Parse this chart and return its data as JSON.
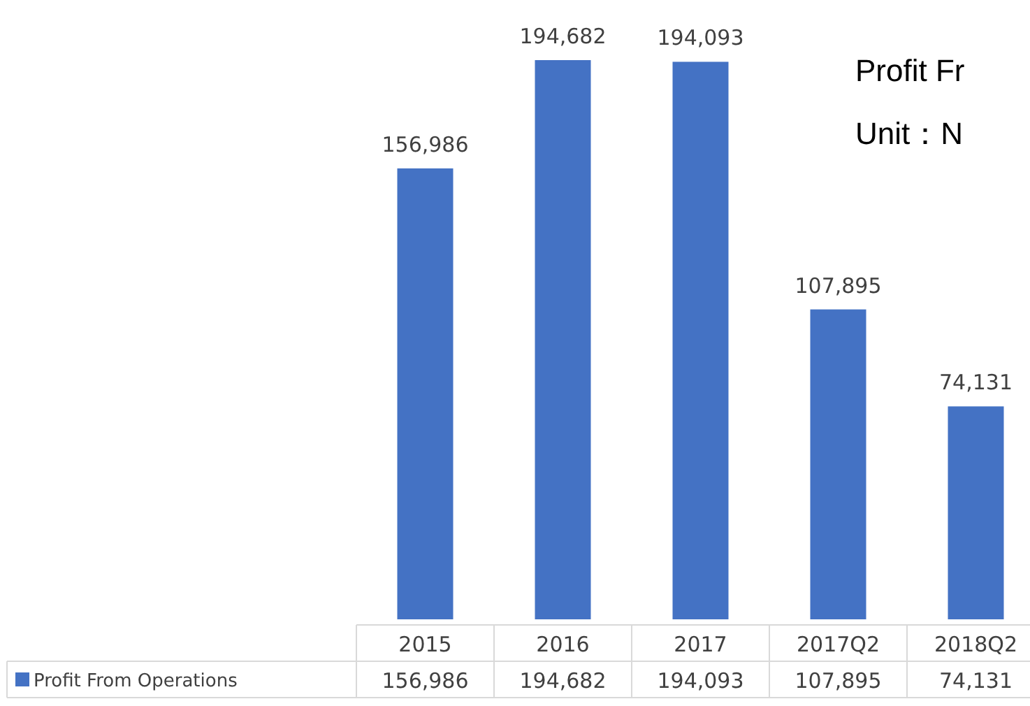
{
  "chart_data": {
    "type": "bar",
    "title": "Profit Fr",
    "subtitle": "Unit：N",
    "categories": [
      "2015",
      "2016",
      "2017",
      "2017Q2",
      "2018Q2"
    ],
    "series": [
      {
        "name": "Profit From Operations",
        "color": "#4472c4",
        "values": [
          156986,
          194682,
          194093,
          107895,
          74131
        ],
        "value_labels": [
          "156,986",
          "194,682",
          "194,093",
          "107,895",
          "74,131"
        ]
      }
    ],
    "legend": "bottom"
  }
}
